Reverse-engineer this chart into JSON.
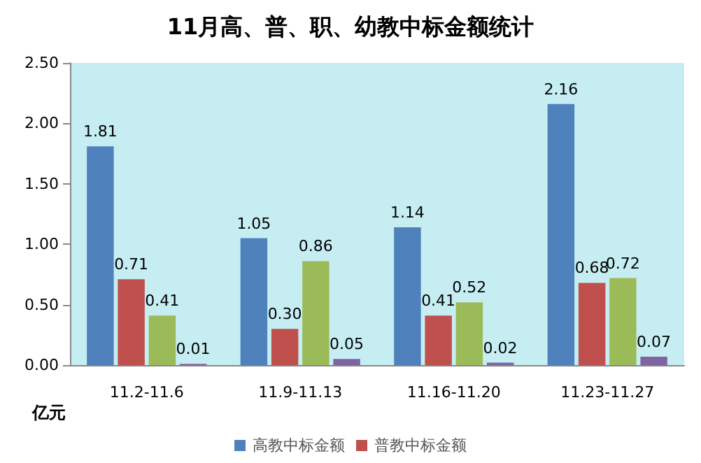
{
  "chart_data": {
    "type": "bar",
    "title": "11月高、普、职、幼教中标金额统计",
    "ylabel": "亿元",
    "categories": [
      "11.2-11.6",
      "11.9-11.13",
      "11.16-11.20",
      "11.23-11.27"
    ],
    "series": [
      {
        "name": "高教中标金额",
        "color": "#4f81bd",
        "values": [
          1.81,
          1.05,
          1.14,
          2.16
        ],
        "value_labels": [
          "1.81",
          "1.05",
          "1.14",
          "2.16"
        ]
      },
      {
        "name": "普教中标金额",
        "color": "#c0504d",
        "values": [
          0.71,
          0.3,
          0.41,
          0.68
        ],
        "value_labels": [
          "0.71",
          "0.30",
          "0.41",
          "0.68"
        ]
      },
      {
        "color": "#9bbb59",
        "values": [
          0.41,
          0.86,
          0.52,
          0.72
        ],
        "value_labels": [
          "0.41",
          "0.86",
          "0.52",
          "0.72"
        ]
      },
      {
        "color": "#8064a2",
        "values": [
          0.01,
          0.05,
          0.02,
          0.07
        ],
        "value_labels": [
          "0.01",
          "0.05",
          "0.02",
          "0.07"
        ]
      }
    ],
    "ylim": [
      0,
      2.5
    ],
    "yticks": [
      {
        "value": 0,
        "label": "0.00"
      },
      {
        "value": 0.5,
        "label": "0.50"
      },
      {
        "value": 1,
        "label": "1.00"
      },
      {
        "value": 1.5,
        "label": "1.50"
      },
      {
        "value": 2,
        "label": "2.00"
      },
      {
        "value": 2.5,
        "label": "2.50"
      }
    ],
    "grid": false,
    "legend": "bottom"
  }
}
